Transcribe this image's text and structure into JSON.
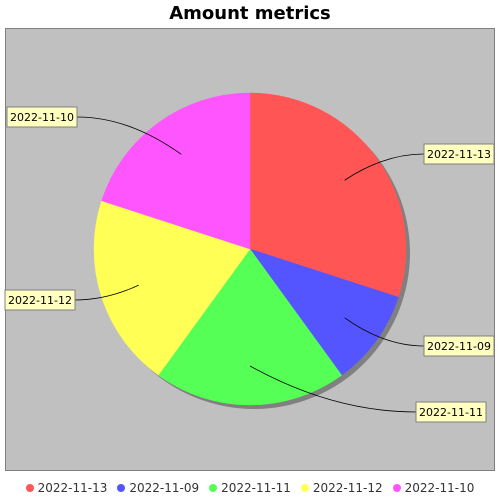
{
  "chart_data": {
    "type": "pie",
    "title": "Amount metrics",
    "categories": [
      "2022-11-13",
      "2022-11-09",
      "2022-11-11",
      "2022-11-12",
      "2022-11-10"
    ],
    "values": [
      30,
      10,
      20,
      20,
      20
    ],
    "colors": [
      "#ff5555",
      "#5555ff",
      "#55ff55",
      "#ffff55",
      "#ff55ff"
    ],
    "legend_position": "bottom",
    "background": "#c0c0c0",
    "label_background": "#ffffc0"
  }
}
